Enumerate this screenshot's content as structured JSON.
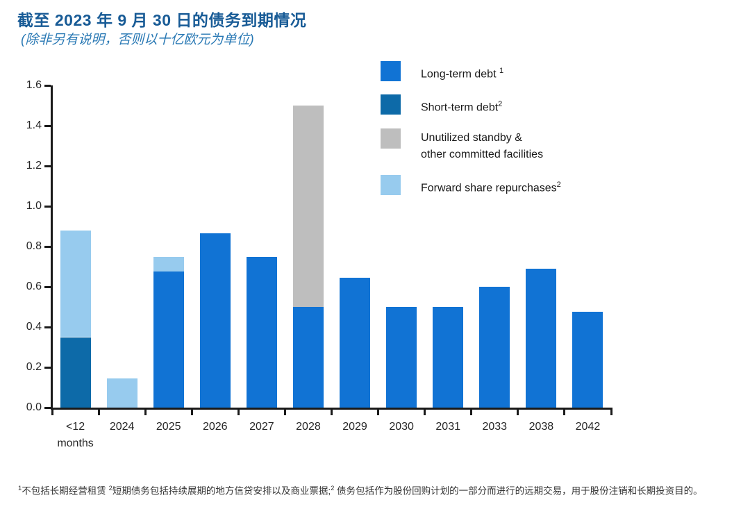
{
  "header": {
    "title": "截至 2023 年 9 月 30 日的债务到期情况",
    "subtitle": "(除非另有说明，否则以十亿欧元为单位)"
  },
  "colors": {
    "long_term": "#1173d4",
    "short_term": "#0d6aa8",
    "standby": "#bebebe",
    "forward": "#97cbee",
    "title": "#185b96",
    "subtitle": "#2878b4",
    "axis": "#1a1a1a"
  },
  "legend": {
    "items": [
      {
        "label": "Long-term debt ",
        "sup": "1",
        "color_key": "long_term"
      },
      {
        "label": "Short-term debt",
        "sup": "2",
        "color_key": "short_term"
      },
      {
        "label": "Unutilized standby &\nother committed facilities",
        "sup": "",
        "color_key": "standby"
      },
      {
        "label": "Forward share repurchases",
        "sup": "2",
        "color_key": "forward"
      }
    ]
  },
  "chart_data": {
    "type": "bar",
    "stacked": true,
    "title": "截至 2023 年 9 月 30 日的债务到期情况",
    "subtitle": "(除非另有说明，否则以十亿欧元为单位)",
    "xlabel": "",
    "ylabel": "",
    "ylim": [
      0,
      1.6
    ],
    "ytick_step": 0.2,
    "yticks": [
      "1.6",
      "1.4",
      "1.2",
      "1.0",
      "0.8",
      "0.6",
      "0.4",
      "0.2",
      "0.0"
    ],
    "grid": false,
    "legend_position": "top-right",
    "categories": [
      "<12\nmonths",
      "2024",
      "2025",
      "2026",
      "2027",
      "2028",
      "2029",
      "2030",
      "2031",
      "2033",
      "2038",
      "2042"
    ],
    "series": [
      {
        "name": "Long-term debt",
        "color_key": "long_term",
        "values": [
          0,
          0,
          0.675,
          0.865,
          0.75,
          0.5,
          0.645,
          0.5,
          0.5,
          0.6,
          0.69,
          0.475
        ]
      },
      {
        "name": "Short-term debt",
        "color_key": "short_term",
        "values": [
          0.35,
          0,
          0,
          0,
          0,
          0,
          0,
          0,
          0,
          0,
          0,
          0
        ]
      },
      {
        "name": "Unutilized standby & other committed facilities",
        "color_key": "standby",
        "values": [
          0,
          0,
          0,
          0,
          0,
          1.0,
          0,
          0,
          0,
          0,
          0,
          0
        ]
      },
      {
        "name": "Forward share repurchases",
        "color_key": "forward",
        "values": [
          0.53,
          0.145,
          0.075,
          0,
          0,
          0,
          0,
          0,
          0,
          0,
          0,
          0
        ]
      }
    ],
    "bar_totals": [
      0.88,
      0.145,
      0.75,
      0.865,
      0.75,
      1.5,
      0.645,
      0.5,
      0.5,
      0.6,
      0.69,
      0.475
    ]
  },
  "footnote": {
    "segments": [
      {
        "sup": "1",
        "text": "不包括长期经营租赁 "
      },
      {
        "sup": "2",
        "text": "短期债务包括持续展期的地方信贷安排以及商业票据;"
      },
      {
        "sup": "2",
        "text": " 债务包括作为股份回购计划的一部分而进行的远期交易，用于股份注销和长期投资目的。"
      }
    ]
  }
}
